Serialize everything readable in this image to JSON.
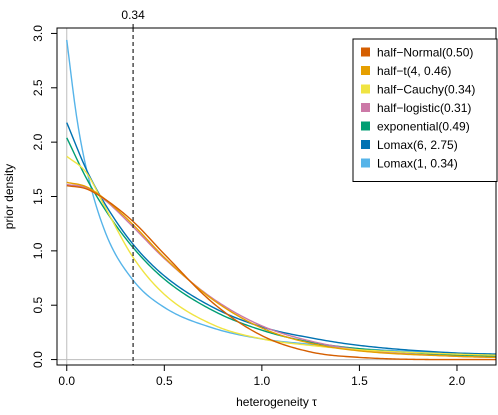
{
  "chart_data": {
    "type": "line",
    "title": "",
    "xlabel": "heterogeneity τ",
    "ylabel": "prior density",
    "xlim": [
      -0.05,
      2.2
    ],
    "ylim": [
      -0.05,
      3.05
    ],
    "xticks": [
      0.0,
      0.5,
      1.0,
      1.5,
      2.0
    ],
    "xtick_labels": [
      "0.0",
      "0.5",
      "1.0",
      "1.5",
      "2.0"
    ],
    "yticks": [
      0.0,
      0.5,
      1.0,
      1.5,
      2.0,
      2.5,
      3.0
    ],
    "ytick_labels": [
      "0.0",
      "0.5",
      "1.0",
      "1.5",
      "2.0",
      "2.5",
      "3.0"
    ],
    "grid": false,
    "legend_position": "top-right",
    "reference_line": {
      "x": 0.34,
      "label": "0.34",
      "style": "dashed"
    },
    "series": [
      {
        "name": "half−Normal(0.50)",
        "color": "#D55E00",
        "x": [
          0,
          0.1,
          0.2,
          0.34,
          0.5,
          0.75,
          1.0,
          1.25,
          1.5,
          2.0,
          2.2
        ],
        "y": [
          1.6,
          1.57,
          1.47,
          1.27,
          0.97,
          0.52,
          0.22,
          0.07,
          0.02,
          0.0,
          0.0
        ]
      },
      {
        "name": "half−t(4, 0.46)",
        "color": "#E69F00",
        "x": [
          0,
          0.1,
          0.2,
          0.34,
          0.5,
          0.75,
          1.0,
          1.25,
          1.5,
          2.0,
          2.2
        ],
        "y": [
          1.63,
          1.59,
          1.47,
          1.24,
          0.94,
          0.55,
          0.29,
          0.15,
          0.08,
          0.03,
          0.02
        ]
      },
      {
        "name": "half−Cauchy(0.34)",
        "color": "#F0E442",
        "x": [
          0,
          0.1,
          0.2,
          0.34,
          0.5,
          0.75,
          1.0,
          1.25,
          1.5,
          2.0,
          2.2
        ],
        "y": [
          1.87,
          1.72,
          1.39,
          0.94,
          0.6,
          0.32,
          0.19,
          0.13,
          0.09,
          0.05,
          0.04
        ]
      },
      {
        "name": "half−logistic(0.31)",
        "color": "#CC79A7",
        "x": [
          0,
          0.1,
          0.2,
          0.34,
          0.5,
          0.75,
          1.0,
          1.25,
          1.5,
          2.0,
          2.2
        ],
        "y": [
          1.61,
          1.58,
          1.46,
          1.22,
          0.93,
          0.56,
          0.31,
          0.17,
          0.09,
          0.03,
          0.02
        ]
      },
      {
        "name": "exponential(0.49)",
        "color": "#009E73",
        "x": [
          0,
          0.1,
          0.2,
          0.34,
          0.5,
          0.75,
          1.0,
          1.25,
          1.5,
          2.0,
          2.2
        ],
        "y": [
          2.04,
          1.67,
          1.37,
          1.03,
          0.74,
          0.45,
          0.27,
          0.16,
          0.1,
          0.04,
          0.03
        ]
      },
      {
        "name": "Lomax(6, 2.75)",
        "color": "#0072B2",
        "x": [
          0,
          0.1,
          0.2,
          0.34,
          0.5,
          0.75,
          1.0,
          1.25,
          1.5,
          2.0,
          2.2
        ],
        "y": [
          2.18,
          1.75,
          1.42,
          1.06,
          0.77,
          0.48,
          0.3,
          0.2,
          0.13,
          0.06,
          0.05
        ]
      },
      {
        "name": "Lomax(1, 0.34)",
        "color": "#56B4E9",
        "x": [
          0,
          0.05,
          0.1,
          0.2,
          0.34,
          0.5,
          0.75,
          1.0,
          1.25,
          1.5,
          2.0,
          2.2
        ],
        "y": [
          2.94,
          2.24,
          1.76,
          1.16,
          0.73,
          0.48,
          0.29,
          0.19,
          0.14,
          0.1,
          0.06,
          0.05
        ]
      }
    ]
  }
}
